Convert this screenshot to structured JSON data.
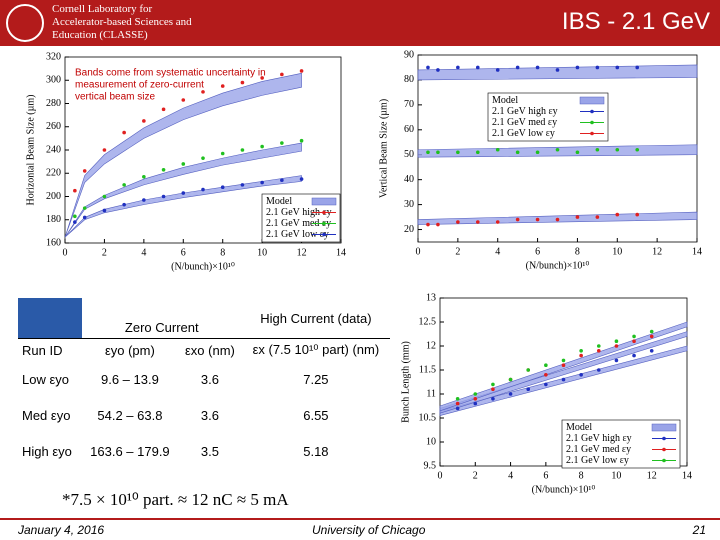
{
  "header": {
    "logo_lines": [
      "Cornell Laboratory for",
      "Accelerator-based Sciences and",
      "Education (CLASSE)"
    ],
    "title": "IBS - 2.1 GeV"
  },
  "charts": [
    {
      "type": "scatter",
      "ylabel": "Horizontal Beam Size (µm)",
      "xlabel": "(N/bunch)×10¹⁰",
      "annotation": [
        "Bands come from systematic uncertainty in",
        "measurement of zero-current",
        "vertical beam size"
      ],
      "xlim": [
        0,
        14
      ],
      "xticks": [
        0,
        2,
        4,
        6,
        8,
        10,
        12,
        14
      ],
      "ylim": [
        160,
        320
      ],
      "yticks": [
        160,
        180,
        200,
        220,
        240,
        260,
        280,
        300,
        320
      ],
      "model_label": "Model",
      "band_color": "#9aa4e8",
      "band_x": [
        0,
        1,
        2,
        4,
        6,
        8,
        10,
        12
      ],
      "bands": [
        {
          "lower": [
            165,
            212,
            228,
            250,
            266,
            278,
            287,
            294
          ],
          "upper": [
            165,
            218,
            236,
            259,
            276,
            289,
            299,
            306
          ]
        },
        {
          "lower": [
            165,
            189,
            198,
            210,
            219,
            227,
            233,
            239
          ],
          "upper": [
            165,
            191,
            201,
            215,
            225,
            233,
            240,
            246
          ]
        },
        {
          "lower": [
            165,
            180,
            186,
            193,
            199,
            204,
            209,
            213
          ],
          "upper": [
            165,
            182,
            189,
            197,
            203,
            208,
            213,
            218
          ]
        }
      ],
      "x": [
        0.5,
        1,
        2,
        3,
        4,
        5,
        6,
        7,
        8,
        9,
        10,
        11,
        12
      ],
      "series": [
        {
          "name": "2.1 GeV high εy",
          "color": "#e02020",
          "values": [
            205,
            222,
            240,
            255,
            265,
            275,
            283,
            290,
            295,
            298,
            302,
            305,
            308
          ]
        },
        {
          "name": "2.1 GeV med εy",
          "color": "#20c020",
          "values": [
            183,
            190,
            200,
            210,
            217,
            223,
            228,
            233,
            237,
            240,
            243,
            246,
            248
          ]
        },
        {
          "name": "2.1 GeV low εy",
          "color": "#2030c0",
          "values": [
            178,
            182,
            188,
            193,
            197,
            200,
            203,
            206,
            208,
            210,
            212,
            214,
            215
          ]
        }
      ]
    },
    {
      "type": "scatter",
      "ylabel": "Vertical Beam Size (µm)",
      "xlabel": "(N/bunch)×10¹⁰",
      "xlim": [
        0,
        14
      ],
      "xticks": [
        0,
        2,
        4,
        6,
        8,
        10,
        12,
        14
      ],
      "ylim": [
        15,
        90
      ],
      "yticks": [
        20,
        30,
        40,
        50,
        60,
        70,
        80,
        90
      ],
      "model_label": "Model",
      "band_color": "#9aa4e8",
      "band_x": [
        0,
        14
      ],
      "bands": [
        {
          "lower": [
            80,
            81
          ],
          "upper": [
            84,
            86
          ]
        },
        {
          "lower": [
            49,
            50
          ],
          "upper": [
            52,
            54
          ]
        },
        {
          "lower": [
            22,
            24
          ],
          "upper": [
            24,
            27
          ]
        }
      ],
      "x": [
        0.5,
        1,
        2,
        3,
        4,
        5,
        6,
        7,
        8,
        9,
        10,
        11
      ],
      "series": [
        {
          "name": "2.1 GeV high εy",
          "color": "#2030c0",
          "values": [
            85,
            84,
            85,
            85,
            84,
            85,
            85,
            84,
            85,
            85,
            85,
            85
          ]
        },
        {
          "name": "2.1 GeV med εy",
          "color": "#20c020",
          "values": [
            51,
            51,
            51,
            51,
            52,
            51,
            51,
            52,
            51,
            52,
            52,
            52
          ]
        },
        {
          "name": "2.1 GeV low εy",
          "color": "#e02020",
          "values": [
            22,
            22,
            23,
            23,
            23,
            24,
            24,
            24,
            25,
            25,
            26,
            26
          ]
        }
      ]
    },
    {
      "type": "scatter",
      "ylabel": "Bunch Length (mm)",
      "xlabel": "(N/bunch)×10¹⁰",
      "xlim": [
        0,
        14
      ],
      "xticks": [
        0,
        2,
        4,
        6,
        8,
        10,
        12,
        14
      ],
      "ylim": [
        9.5,
        13
      ],
      "yticks": [
        9.5,
        10,
        10.5,
        11,
        11.5,
        12,
        12.5,
        13
      ],
      "model_label": "Model",
      "band_color": "#9aa4e8",
      "band_x": [
        0,
        14
      ],
      "bands": [
        {
          "lower": [
            10.55,
            11.9
          ],
          "upper": [
            10.65,
            12.0
          ]
        },
        {
          "lower": [
            10.6,
            12.2
          ],
          "upper": [
            10.7,
            12.3
          ]
        },
        {
          "lower": [
            10.65,
            12.4
          ],
          "upper": [
            10.75,
            12.5
          ]
        }
      ],
      "x": [
        1,
        2,
        3,
        4,
        5,
        6,
        7,
        8,
        9,
        10,
        11,
        12
      ],
      "series": [
        {
          "name": "2.1 GeV high εy",
          "color": "#2030c0",
          "values": [
            10.7,
            10.8,
            10.9,
            11.0,
            11.1,
            11.2,
            11.3,
            11.4,
            11.5,
            11.7,
            11.8,
            11.9
          ]
        },
        {
          "name": "2.1 GeV med εy",
          "color": "#e02020",
          "values": [
            10.8,
            10.9,
            11.1,
            11.3,
            11.5,
            11.4,
            11.6,
            11.8,
            11.9,
            12.0,
            12.1,
            12.2
          ]
        },
        {
          "name": "2.1 GeV low εy",
          "color": "#20c020",
          "values": [
            10.9,
            11.0,
            11.2,
            11.3,
            11.5,
            11.6,
            11.7,
            11.9,
            12.0,
            12.1,
            12.2,
            12.3
          ]
        }
      ]
    }
  ],
  "table": {
    "group_headers": [
      "Zero Current",
      "High Current (data)"
    ],
    "columns": [
      "Run ID",
      "εyo (pm)",
      "εxo (nm)",
      "εx (7.5 10¹⁰ part) (nm)"
    ],
    "rows": [
      [
        "Low εyo",
        "9.6 – 13.9",
        "3.6",
        "7.25"
      ],
      [
        "Med εyo",
        "54.2 – 63.8",
        "3.6",
        "6.55"
      ],
      [
        "High εyo",
        "163.6 – 179.9",
        "3.5",
        "5.18"
      ]
    ]
  },
  "footnote": "*7.5 × 10¹⁰ part. ≈ 12 nC ≈ 5 mA",
  "footer": {
    "date": "January 4, 2016",
    "venue": "University of Chicago",
    "page": "21"
  }
}
